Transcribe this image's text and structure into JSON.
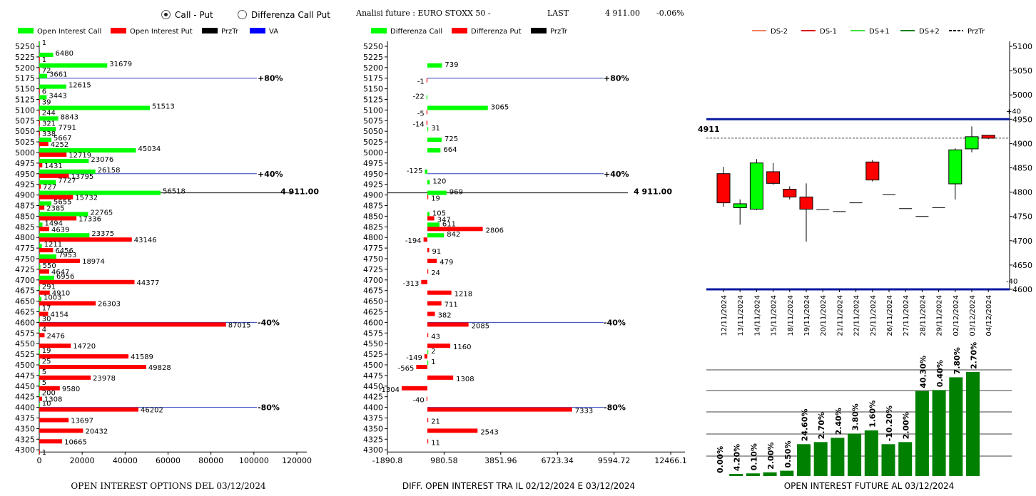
{
  "header": {
    "radio_call_put": "Call - Put",
    "radio_diff": "Differenza Call Put",
    "future_title": "Analisi future : EURO STOXX 50 -",
    "last_label": "LAST",
    "last_value": "4 911.00",
    "change": "-0.06%"
  },
  "colors": {
    "green": "#00ff00",
    "red": "#ff0000",
    "blue": "#0000ff",
    "navy": "#0a1aa0",
    "darkgreen": "#008000"
  },
  "chart_data": [
    {
      "type": "bar",
      "title": "OPEN INTEREST OPTIONS DEL 03/12/2024",
      "legend": [
        "Open Interest Call",
        "Open Interest Put",
        "PrzTr",
        "VA"
      ],
      "strikes": [
        5250,
        5225,
        5200,
        5175,
        5150,
        5125,
        5100,
        5075,
        5050,
        5025,
        5000,
        4975,
        4950,
        4925,
        4900,
        4875,
        4850,
        4825,
        4800,
        4775,
        4750,
        4725,
        4700,
        4675,
        4650,
        4625,
        4600,
        4575,
        4550,
        4525,
        4500,
        4475,
        4450,
        4425,
        4400,
        4375,
        4350,
        4325,
        4300
      ],
      "series": [
        {
          "name": "Open Interest Call",
          "values": [
            1,
            6480,
            31679,
            3661,
            12615,
            3443,
            51513,
            8843,
            7791,
            5667,
            45034,
            23076,
            26158,
            7727,
            56518,
            5655,
            22765,
            1494,
            23375,
            1211,
            7953,
            550,
            6956,
            291,
            1003,
            17,
            30,
            4,
            null,
            19,
            25,
            5,
            5,
            200,
            10,
            null,
            null,
            null,
            null
          ]
        },
        {
          "name": "Open Interest Put",
          "values": [
            null,
            1,
            72,
            null,
            6,
            39,
            244,
            321,
            338,
            4252,
            12719,
            1431,
            13795,
            727,
            15732,
            2385,
            17336,
            4639,
            43146,
            6456,
            18974,
            4647,
            44377,
            4910,
            26303,
            4154,
            87015,
            2476,
            14720,
            41589,
            49828,
            23978,
            9580,
            1308,
            46202,
            13697,
            20432,
            10665,
            1
          ]
        }
      ],
      "levels": [
        {
          "strike": 5175,
          "label": "+80%"
        },
        {
          "strike": 4950,
          "label": "+40%"
        },
        {
          "strike": 4900,
          "label": "4 911.00",
          "type": "PrzTr"
        },
        {
          "strike": 4600,
          "label": "-40%"
        },
        {
          "strike": 4400,
          "label": "-80%"
        }
      ],
      "x_ticks": [
        "0",
        "20000",
        "40000",
        "60000",
        "80000",
        "100000",
        "120000"
      ],
      "xlim": [
        0,
        120000
      ]
    },
    {
      "type": "bar",
      "title": "DIFF. OPEN INTEREST TRA IL 02/12/2024 E 03/12/2024",
      "legend": [
        "Differenza Call",
        "Differenza Put",
        "PrzTr"
      ],
      "strikes": [
        5250,
        5225,
        5200,
        5175,
        5150,
        5125,
        5100,
        5075,
        5050,
        5025,
        5000,
        4975,
        4950,
        4925,
        4900,
        4875,
        4850,
        4825,
        4800,
        4775,
        4750,
        4725,
        4700,
        4675,
        4650,
        4625,
        4600,
        4575,
        4550,
        4525,
        4500,
        4475,
        4450,
        4425,
        4400,
        4375,
        4350,
        4325,
        4300
      ],
      "series": [
        {
          "name": "Differenza Call",
          "values": [
            null,
            null,
            739,
            null,
            null,
            -22,
            3065,
            null,
            31,
            725,
            664,
            null,
            -125,
            120,
            969,
            null,
            105,
            611,
            842,
            null,
            null,
            null,
            null,
            null,
            null,
            null,
            null,
            null,
            null,
            2,
            1,
            null,
            null,
            null,
            null,
            null,
            null,
            null,
            null
          ]
        },
        {
          "name": "Differenza Put",
          "values": [
            null,
            null,
            null,
            -1,
            null,
            null,
            -5,
            -14,
            null,
            null,
            null,
            null,
            null,
            null,
            19,
            null,
            347,
            2806,
            -194,
            91,
            479,
            24,
            -313,
            1218,
            711,
            382,
            2085,
            43,
            1160,
            -149,
            -565,
            1308,
            -1304,
            -40,
            7333,
            21,
            2543,
            11,
            null
          ]
        }
      ],
      "levels": [
        {
          "strike": 5175,
          "label": "+80%"
        },
        {
          "strike": 4950,
          "label": "+40%"
        },
        {
          "strike": 4900,
          "label": "4 911.00",
          "type": "PrzTr"
        },
        {
          "strike": 4600,
          "label": "-40%"
        },
        {
          "strike": 4400,
          "label": "-80%"
        }
      ],
      "x_ticks": [
        "-1890.8",
        "980.58",
        "3851.96",
        "6723.34",
        "9594.72",
        "12466.1"
      ],
      "xlim": [
        -1890.8,
        12466.1
      ]
    },
    {
      "type": "candlestick",
      "legend": [
        "DS-2",
        "DS-1",
        "DS+1",
        "DS+2",
        "PrzTr"
      ],
      "dates": [
        "12/11/2024",
        "13/11/2024",
        "14/11/2024",
        "15/11/2024",
        "18/11/2024",
        "19/11/2024",
        "20/11/2024",
        "21/11/2024",
        "22/11/2024",
        "25/11/2024",
        "26/11/2024",
        "27/11/2024",
        "28/11/2024",
        "29/11/2024",
        "02/12/2024",
        "03/12/2024",
        "04/12/2024"
      ],
      "candles": [
        {
          "o": 4838,
          "h": 4852,
          "l": 4770,
          "c": 4778
        },
        {
          "o": 4768,
          "h": 4785,
          "l": 4733,
          "c": 4776
        },
        {
          "o": 4765,
          "h": 4868,
          "l": 4763,
          "c": 4860
        },
        {
          "o": 4842,
          "h": 4860,
          "l": 4815,
          "c": 4818
        },
        {
          "o": 4806,
          "h": 4812,
          "l": 4785,
          "c": 4790
        },
        {
          "o": 4790,
          "h": 4818,
          "l": 4698,
          "c": 4765
        },
        {
          "o": 4764,
          "h": 4764,
          "l": 4764,
          "c": 4764
        },
        {
          "o": 4760,
          "h": 4760,
          "l": 4760,
          "c": 4760
        },
        {
          "o": 4778,
          "h": 4778,
          "l": 4778,
          "c": 4778
        },
        {
          "o": 4862,
          "h": 4866,
          "l": 4822,
          "c": 4825
        },
        {
          "o": 4795,
          "h": 4795,
          "l": 4795,
          "c": 4795
        },
        {
          "o": 4766,
          "h": 4766,
          "l": 4766,
          "c": 4766
        },
        {
          "o": 4750,
          "h": 4750,
          "l": 4750,
          "c": 4750
        },
        {
          "o": 4768,
          "h": 4768,
          "l": 4768,
          "c": 4768
        },
        {
          "o": 4817,
          "h": 4890,
          "l": 4785,
          "c": 4887
        },
        {
          "o": 4889,
          "h": 4935,
          "l": 4882,
          "c": 4914
        },
        {
          "o": 4917,
          "h": 4917,
          "l": 4909,
          "c": 4911
        }
      ],
      "y_ticks": [
        4600,
        4650,
        4700,
        4750,
        4800,
        4850,
        4900,
        4950,
        5000,
        5050,
        5100
      ],
      "ylim": [
        4600,
        5100
      ],
      "price_line": {
        "value": 4911,
        "label": "4911"
      },
      "bands": [
        {
          "value": 4950,
          "label": "+40"
        },
        {
          "value": 4600,
          "label": "-40"
        }
      ]
    },
    {
      "type": "bar",
      "title": "OPEN INTEREST FUTURE AL 03/12/2024",
      "labels": [
        "0.00%",
        "4.20%",
        "0.10%",
        "2.00%",
        "0.50%",
        "24.60%",
        "2.70%",
        "2.40%",
        "3.80%",
        "1.60%",
        "-10.20%",
        "2.00%",
        "40.30%",
        "0.40%",
        "7.80%",
        "2.70%"
      ],
      "values": [
        0,
        2,
        2.5,
        3.5,
        5,
        30,
        32,
        36,
        40,
        43,
        30,
        32,
        80,
        81,
        93,
        98
      ]
    }
  ]
}
